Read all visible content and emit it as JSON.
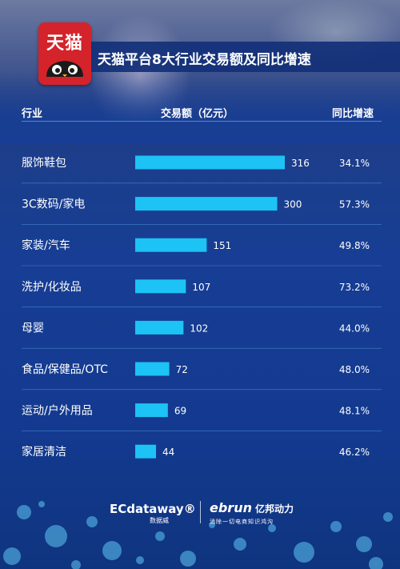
{
  "title": "天猫平台8大行业交易额及同比增速",
  "logo": {
    "text": "天猫"
  },
  "colors": {
    "bar": "#1cc3f4",
    "text": "#ffffff",
    "logo_red": "#d4232a",
    "divider": "#5fb6ea"
  },
  "columns": {
    "industry": "行业",
    "amount": "交易额（亿元）",
    "growth": "同比增速"
  },
  "chart_data": {
    "type": "bar",
    "orientation": "horizontal",
    "title": "天猫平台8大行业交易额及同比增速",
    "xlabel": "交易额（亿元）",
    "categories": [
      "服饰鞋包",
      "3C数码/家电",
      "家装/汽车",
      "洗护/化妆品",
      "母婴",
      "食品/保健品/OTC",
      "运动/户外用品",
      "家居清洁"
    ],
    "values": [
      316,
      300,
      151,
      107,
      102,
      72,
      69,
      44
    ],
    "growth": [
      "34.1%",
      "57.3%",
      "49.8%",
      "73.2%",
      "44.0%",
      "48.0%",
      "48.1%",
      "46.2%"
    ],
    "xlim": [
      0,
      316
    ],
    "grid": false,
    "legend": "none"
  },
  "footer": {
    "ecdataway_logo": "ECdataway®",
    "ecdataway_cn": "数据威",
    "ebrun_logo": "ebrun",
    "ebrun_cn": "亿邦动力",
    "ebrun_slogan": "消除一切电商知识鸿沟"
  }
}
